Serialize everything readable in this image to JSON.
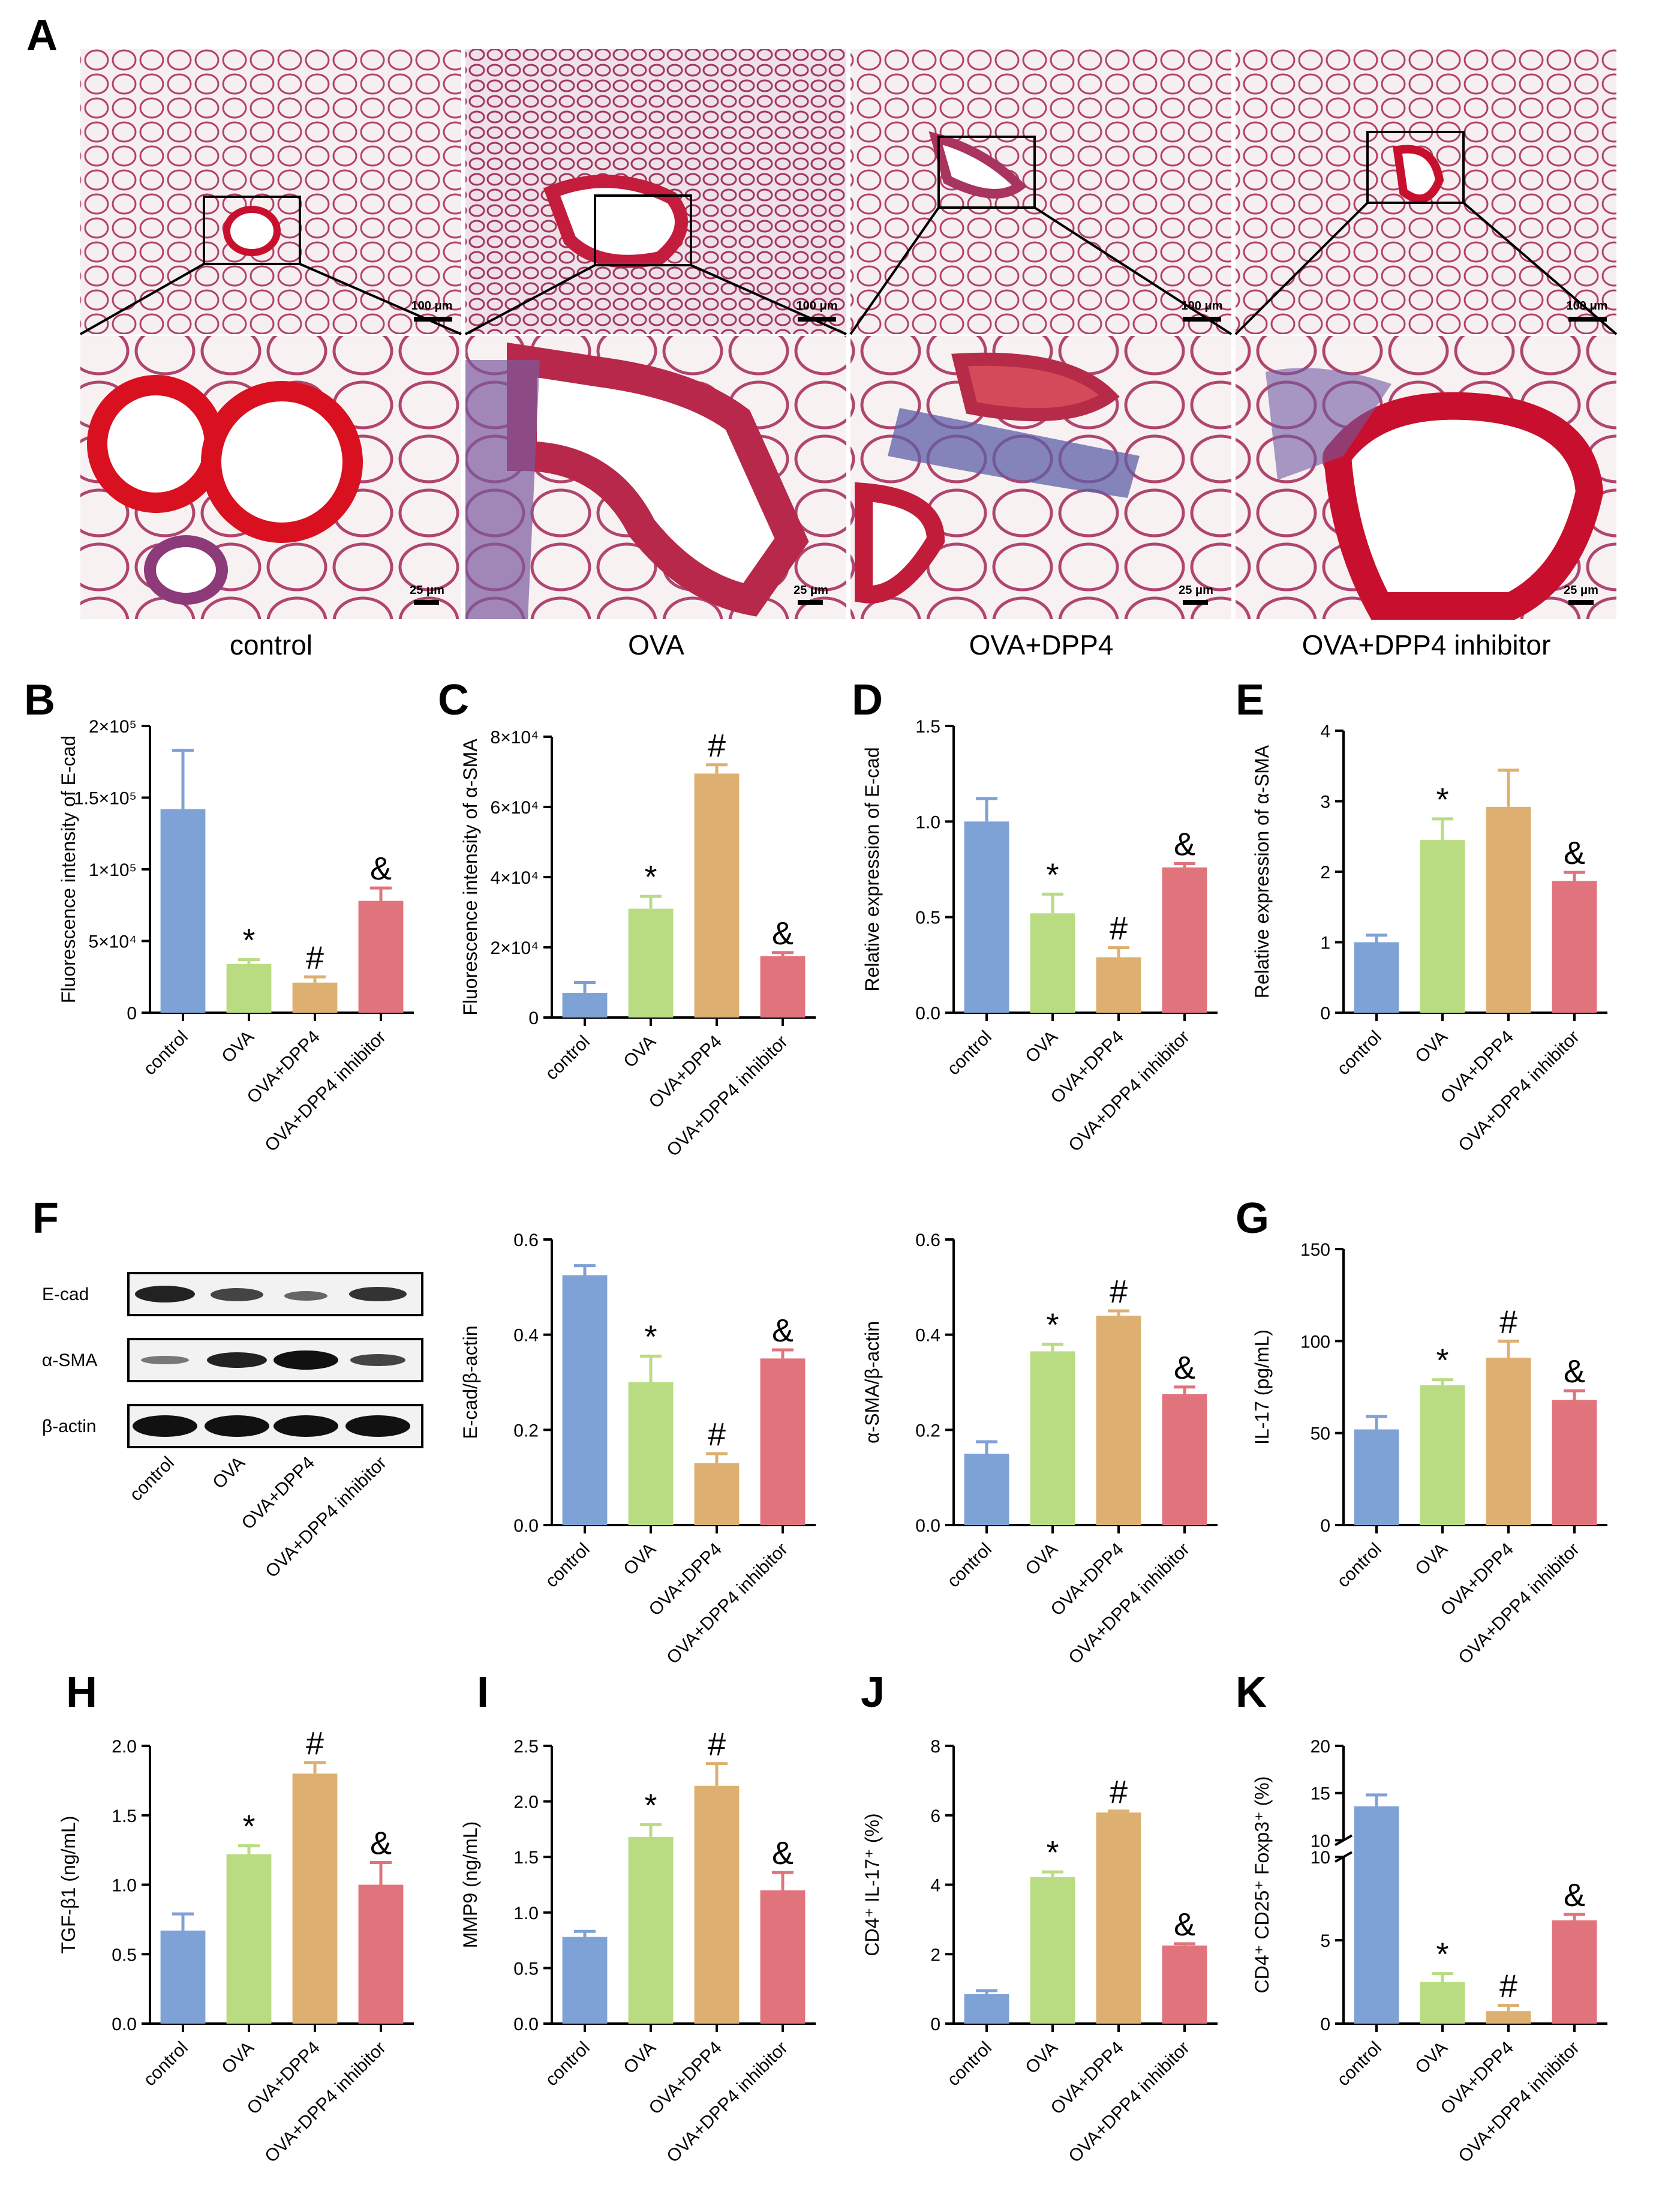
{
  "panel_letters": [
    "A",
    "B",
    "C",
    "D",
    "E",
    "F",
    "G",
    "H",
    "I",
    "J",
    "K"
  ],
  "histology": {
    "groups": [
      "control",
      "OVA",
      "OVA+DPP4",
      "OVA+DPP4 inhibitor"
    ],
    "scale_top": "100 μm",
    "scale_bottom": "25 μm"
  },
  "western_blot": {
    "bands": [
      "E-cad",
      "α-SMA",
      "β-actin"
    ],
    "lanes": [
      "control",
      "OVA",
      "OVA+DPP4",
      "OVA+DPP4 inhibitor"
    ]
  },
  "colors": {
    "control": "#7ea1d6",
    "OVA": "#b9dc82",
    "OVA+DPP4": "#ddb071",
    "OVA+DPP4 inhibitor": "#e0737c"
  },
  "chart_data": [
    {
      "id": "B",
      "type": "bar",
      "categories": [
        "control",
        "OVA",
        "OVA+DPP4",
        "OVA+DPP4 inhibitor"
      ],
      "values": [
        142000,
        34000,
        21000,
        78000
      ],
      "errors": [
        41000,
        3000,
        4000,
        9000
      ],
      "marks": [
        "",
        "*",
        "#",
        "&"
      ],
      "ylabel": "Fluorescence intensity of E-cad",
      "ylim": [
        0,
        200000
      ],
      "yticks": [
        "0",
        "5×10⁴",
        "1×10⁵",
        "1.5×10⁵",
        "2×10⁵"
      ]
    },
    {
      "id": "C",
      "type": "bar",
      "categories": [
        "control",
        "OVA",
        "OVA+DPP4",
        "OVA+DPP4 inhibitor"
      ],
      "values": [
        7000,
        31000,
        69500,
        17500
      ],
      "errors": [
        3000,
        3500,
        2500,
        1000
      ],
      "marks": [
        "",
        "*",
        "#",
        "&"
      ],
      "ylabel": "Fluorescence intensity of α-SMA",
      "ylim": [
        0,
        80000
      ],
      "yticks": [
        "0",
        "2×10⁴",
        "4×10⁴",
        "6×10⁴",
        "8×10⁴"
      ]
    },
    {
      "id": "D",
      "type": "bar",
      "categories": [
        "control",
        "OVA",
        "OVA+DPP4",
        "OVA+DPP4 inhibitor"
      ],
      "values": [
        1.0,
        0.52,
        0.29,
        0.76
      ],
      "errors": [
        0.12,
        0.1,
        0.05,
        0.02
      ],
      "marks": [
        "",
        "*",
        "#",
        "&"
      ],
      "ylabel": "Relative expression of E-cad",
      "ylim": [
        0,
        1.5
      ],
      "yticks": [
        "0.0",
        "0.5",
        "1.0",
        "1.5"
      ]
    },
    {
      "id": "E",
      "type": "bar",
      "categories": [
        "control",
        "OVA",
        "OVA+DPP4",
        "OVA+DPP4 inhibitor"
      ],
      "values": [
        1.0,
        2.45,
        2.92,
        1.87
      ],
      "errors": [
        0.1,
        0.3,
        0.52,
        0.12
      ],
      "marks": [
        "",
        "*",
        "",
        "&"
      ],
      "ylabel": "Relative expression of α-SMA",
      "ylim": [
        0,
        4
      ],
      "yticks": [
        "0",
        "1",
        "2",
        "3",
        "4"
      ]
    },
    {
      "id": "F1",
      "type": "bar",
      "categories": [
        "control",
        "OVA",
        "OVA+DPP4",
        "OVA+DPP4 inhibitor"
      ],
      "values": [
        0.525,
        0.3,
        0.13,
        0.35
      ],
      "errors": [
        0.02,
        0.055,
        0.02,
        0.018
      ],
      "marks": [
        "",
        "*",
        "#",
        "&"
      ],
      "ylabel": "E-cad/β-actin",
      "ylim": [
        0,
        0.6
      ],
      "yticks": [
        "0.0",
        "0.2",
        "0.4",
        "0.6"
      ]
    },
    {
      "id": "F2",
      "type": "bar",
      "categories": [
        "control",
        "OVA",
        "OVA+DPP4",
        "OVA+DPP4 inhibitor"
      ],
      "values": [
        0.15,
        0.365,
        0.44,
        0.275
      ],
      "errors": [
        0.025,
        0.015,
        0.01,
        0.015
      ],
      "marks": [
        "",
        "*",
        "#",
        "&"
      ],
      "ylabel": "α-SMA/β-actin",
      "ylim": [
        0,
        0.6
      ],
      "yticks": [
        "0.0",
        "0.2",
        "0.4",
        "0.6"
      ]
    },
    {
      "id": "G",
      "type": "bar",
      "categories": [
        "control",
        "OVA",
        "OVA+DPP4",
        "OVA+DPP4 inhibitor"
      ],
      "values": [
        52,
        76,
        91,
        68
      ],
      "errors": [
        7,
        3,
        9,
        5
      ],
      "marks": [
        "",
        "*",
        "#",
        "&"
      ],
      "ylabel": "IL-17 (pg/mL)",
      "ylim": [
        0,
        150
      ],
      "yticks": [
        "0",
        "50",
        "100",
        "150"
      ]
    },
    {
      "id": "H",
      "type": "bar",
      "categories": [
        "control",
        "OVA",
        "OVA+DPP4",
        "OVA+DPP4 inhibitor"
      ],
      "values": [
        0.67,
        1.22,
        1.8,
        1.0
      ],
      "errors": [
        0.12,
        0.06,
        0.08,
        0.16
      ],
      "marks": [
        "",
        "*",
        "#",
        "&"
      ],
      "ylabel": "TGF-β1 (ng/mL)",
      "ylim": [
        0,
        2.0
      ],
      "yticks": [
        "0.0",
        "0.5",
        "1.0",
        "1.5",
        "2.0"
      ]
    },
    {
      "id": "I",
      "type": "bar",
      "categories": [
        "control",
        "OVA",
        "OVA+DPP4",
        "OVA+DPP4 inhibitor"
      ],
      "values": [
        0.78,
        1.68,
        2.14,
        1.2
      ],
      "errors": [
        0.05,
        0.11,
        0.2,
        0.16
      ],
      "marks": [
        "",
        "*",
        "#",
        "&"
      ],
      "ylabel": "MMP9 (ng/mL)",
      "ylim": [
        0,
        2.5
      ],
      "yticks": [
        "0.0",
        "0.5",
        "1.0",
        "1.5",
        "2.0",
        "2.5"
      ]
    },
    {
      "id": "J",
      "type": "bar",
      "categories": [
        "control",
        "OVA",
        "OVA+DPP4",
        "OVA+DPP4 inhibitor"
      ],
      "values": [
        0.85,
        4.22,
        6.08,
        2.25
      ],
      "errors": [
        0.1,
        0.15,
        0.04,
        0.05
      ],
      "marks": [
        "",
        "*",
        "#",
        "&"
      ],
      "ylabel": "CD4⁺ IL-17⁺ (%)",
      "ylim": [
        0,
        8
      ],
      "yticks": [
        "0",
        "2",
        "4",
        "6",
        "8"
      ]
    },
    {
      "id": "K",
      "type": "bar",
      "categories": [
        "control",
        "OVA",
        "OVA+DPP4",
        "OVA+DPP4 inhibitor"
      ],
      "values": [
        13.6,
        2.5,
        0.75,
        6.2
      ],
      "errors": [
        1.2,
        0.5,
        0.35,
        0.35
      ],
      "marks": [
        "",
        "*",
        "#",
        "&"
      ],
      "ylabel": "CD4⁺ CD25⁺ Foxp3⁺ (%)",
      "ylim": [
        0,
        20
      ],
      "axis_break": [
        10,
        10
      ],
      "yticks": [
        "0",
        "5",
        "10",
        "10",
        "15",
        "20"
      ]
    }
  ]
}
